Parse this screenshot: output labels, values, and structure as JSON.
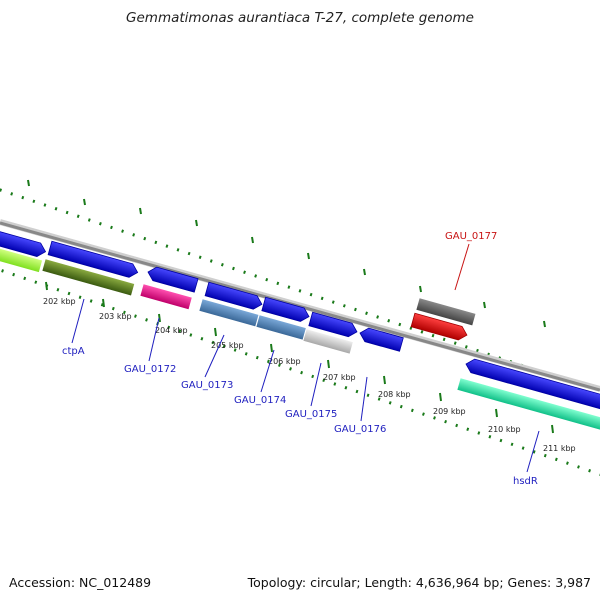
{
  "title": "Gemmatimonas aurantiaca T-27, complete genome",
  "footer": {
    "accession": "Accession: NC_012489",
    "summary": "Topology: circular; Length: 4,636,964 bp; Genes: 3,987"
  },
  "ticks": [
    "202 kbp",
    "203 kbp",
    "204 kbp",
    "205 kbp",
    "206 kbp",
    "207 kbp",
    "208 kbp",
    "209 kbp",
    "210 kbp",
    "211 kbp"
  ],
  "genes": {
    "ctpA": "ctpA",
    "GAU_0172": "GAU_0172",
    "GAU_0173": "GAU_0173",
    "GAU_0174": "GAU_0174",
    "GAU_0175": "GAU_0175",
    "GAU_0176": "GAU_0176",
    "GAU_0177": "GAU_0177",
    "hsdR": "hsdR"
  },
  "colors": {
    "forward_gene": "#1010e0",
    "ctpA": "#5a7a1a",
    "GAU_0172": "#e0108a",
    "GAU_0173": "#4a80b8",
    "GAU_0174": "#4a80b8",
    "GAU_0175": "#c8c8c8",
    "GAU_0177_top": "#666666",
    "GAU_0177": "#e00000",
    "hsdR": "#20e0a0",
    "lime_gene": "#a0ff30",
    "backbone": "#888888",
    "tick": "#1a7a1a",
    "label_blue": "#1f1fbf",
    "label_red": "#c81414"
  }
}
